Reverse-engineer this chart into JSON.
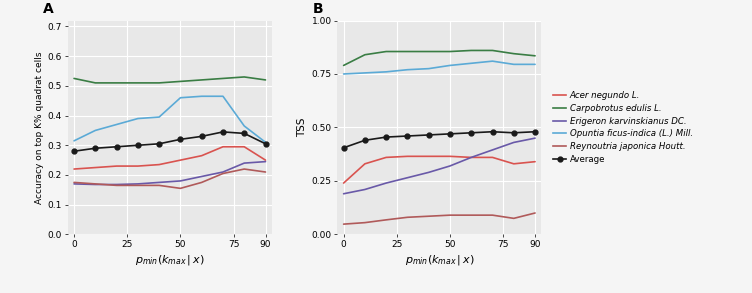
{
  "x_ticks": [
    0,
    25,
    50,
    75,
    90
  ],
  "x_values": [
    0,
    10,
    20,
    30,
    40,
    50,
    60,
    70,
    80,
    90
  ],
  "panel_A": {
    "title": "A",
    "ylabel": "Accuracy on top K% quadrat cells",
    "xlabel": "p_min(k_max | x)",
    "ylim": [
      0.0,
      0.72
    ],
    "yticks": [
      0.0,
      0.1,
      0.2,
      0.3,
      0.4,
      0.5,
      0.6,
      0.7
    ],
    "series": {
      "Acer negundo L.": {
        "color": "#d9534f",
        "values": [
          0.22,
          0.225,
          0.23,
          0.23,
          0.235,
          0.25,
          0.265,
          0.295,
          0.295,
          0.25
        ]
      },
      "Carpobrotus edulis L.": {
        "color": "#3a7d44",
        "values": [
          0.525,
          0.51,
          0.51,
          0.51,
          0.51,
          0.515,
          0.52,
          0.525,
          0.53,
          0.52
        ]
      },
      "Erigeron karvinskianus DC.": {
        "color": "#6959a8",
        "values": [
          0.17,
          0.168,
          0.168,
          0.17,
          0.175,
          0.18,
          0.195,
          0.21,
          0.24,
          0.245
        ]
      },
      "Opuntia ficus-indica (L.) Mill.": {
        "color": "#5baad6",
        "values": [
          0.315,
          0.35,
          0.37,
          0.39,
          0.395,
          0.46,
          0.465,
          0.465,
          0.365,
          0.31
        ]
      },
      "Reynoutria japonica Houtt.": {
        "color": "#b05a5a",
        "values": [
          0.175,
          0.17,
          0.165,
          0.165,
          0.165,
          0.155,
          0.175,
          0.205,
          0.22,
          0.21
        ]
      },
      "Average": {
        "color": "#1a1a1a",
        "values": [
          0.28,
          0.29,
          0.295,
          0.3,
          0.305,
          0.32,
          0.33,
          0.345,
          0.34,
          0.305
        ],
        "marker": true
      }
    }
  },
  "panel_B": {
    "title": "B",
    "ylabel": "TSS",
    "xlabel": "p_min(k_max | x)",
    "ylim": [
      0.0,
      1.0
    ],
    "yticks": [
      0.0,
      0.25,
      0.5,
      0.75,
      1.0
    ],
    "series": {
      "Acer negundo L.": {
        "color": "#d9534f",
        "values": [
          0.24,
          0.33,
          0.36,
          0.365,
          0.365,
          0.365,
          0.36,
          0.36,
          0.33,
          0.34
        ]
      },
      "Carpobrotus edulis L.": {
        "color": "#3a7d44",
        "values": [
          0.79,
          0.84,
          0.855,
          0.855,
          0.855,
          0.855,
          0.86,
          0.86,
          0.845,
          0.835
        ]
      },
      "Erigeron karvinskianus DC.": {
        "color": "#6959a8",
        "values": [
          0.19,
          0.21,
          0.24,
          0.265,
          0.29,
          0.32,
          0.36,
          0.395,
          0.43,
          0.45
        ]
      },
      "Opuntia ficus-indica (L.) Mill.": {
        "color": "#5baad6",
        "values": [
          0.75,
          0.755,
          0.76,
          0.77,
          0.775,
          0.79,
          0.8,
          0.81,
          0.795,
          0.795
        ]
      },
      "Reynoutria japonica Houtt.": {
        "color": "#b05a5a",
        "values": [
          0.048,
          0.055,
          0.068,
          0.08,
          0.085,
          0.09,
          0.09,
          0.09,
          0.075,
          0.1
        ]
      },
      "Average": {
        "color": "#1a1a1a",
        "values": [
          0.405,
          0.44,
          0.455,
          0.46,
          0.465,
          0.47,
          0.475,
          0.48,
          0.475,
          0.48
        ],
        "marker": true
      }
    }
  },
  "legend": {
    "Acer negundo L.": "#d9534f",
    "Carpobrotus edulis L.": "#3a7d44",
    "Erigeron karvinskianus DC.": "#6959a8",
    "Opuntia ficus-indica (L.) Mill.": "#5baad6",
    "Reynoutria japonica Houtt.": "#b05a5a",
    "Average": "#1a1a1a"
  },
  "background_color": "#e8e8e8",
  "grid_color": "#ffffff",
  "fig_bg": "#f5f5f5"
}
